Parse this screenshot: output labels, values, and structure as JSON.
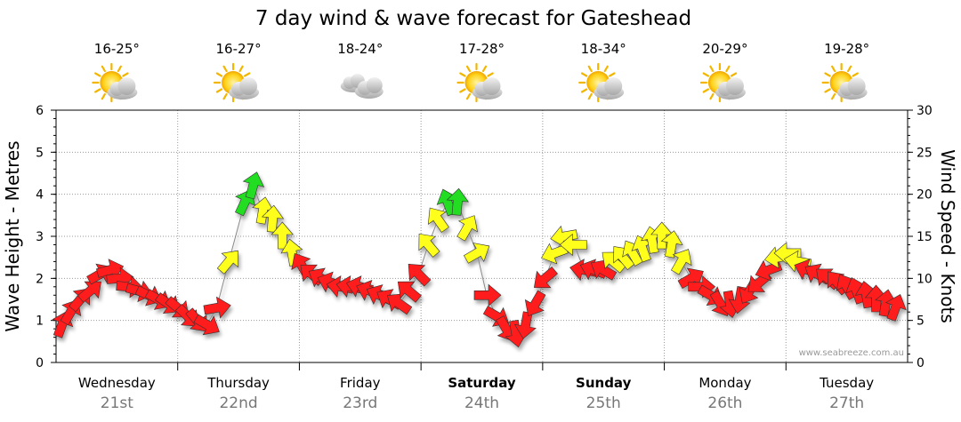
{
  "title": "7 day wind & wave forecast for Gateshead",
  "watermark": "www.seabreeze.com.au",
  "colors": {
    "low": "#ff1a1a",
    "mid": "#ffff1a",
    "high": "#22dd22"
  },
  "days": [
    {
      "name": "Wednesday",
      "date": "21st",
      "bold": false,
      "temp": "16-25°",
      "icon": "sun-cloud-icon"
    },
    {
      "name": "Thursday",
      "date": "22nd",
      "bold": false,
      "temp": "16-27°",
      "icon": "sun-cloud-icon"
    },
    {
      "name": "Friday",
      "date": "23rd",
      "bold": false,
      "temp": "18-24°",
      "icon": "cloud-icon"
    },
    {
      "name": "Saturday",
      "date": "24th",
      "bold": true,
      "temp": "17-28°",
      "icon": "sun-cloud-icon"
    },
    {
      "name": "Sunday",
      "date": "25th",
      "bold": true,
      "temp": "18-34°",
      "icon": "sun-cloud-icon"
    },
    {
      "name": "Monday",
      "date": "26th",
      "bold": false,
      "temp": "20-29°",
      "icon": "sun-cloud-icon"
    },
    {
      "name": "Tuesday",
      "date": "27th",
      "bold": false,
      "temp": "19-28°",
      "icon": "sun-cloud-icon"
    }
  ],
  "chart_data": {
    "type": "line",
    "title": "7 day wind & wave forecast for Gateshead",
    "y_left": {
      "label": "Wave Height - Metres",
      "range": [
        0,
        6
      ],
      "ticks": [
        0,
        1,
        2,
        3,
        4,
        5,
        6
      ]
    },
    "y_right": {
      "label": "Wind Speed - Knots",
      "range": [
        0,
        30
      ],
      "ticks": [
        0,
        5,
        10,
        15,
        20,
        25,
        30
      ]
    },
    "x_unit": "days from start of Wednesday 21st",
    "grid": true,
    "series": [
      {
        "x": [
          0.05,
          0.12,
          0.2,
          0.28,
          0.36,
          0.44,
          0.52,
          0.6,
          0.68,
          0.76,
          0.84,
          0.92,
          1.0,
          1.08,
          1.16,
          1.24,
          1.32,
          1.42,
          1.55,
          1.62,
          1.7,
          1.78,
          1.86,
          1.94,
          2.02,
          2.1,
          2.18,
          2.26,
          2.34,
          2.42,
          2.5,
          2.58,
          2.66,
          2.74,
          2.82,
          2.9,
          2.98,
          3.06,
          3.14,
          3.22,
          3.3,
          3.38,
          3.46,
          3.54,
          3.62,
          3.7,
          3.78,
          3.86,
          3.94,
          4.02,
          4.1,
          4.18,
          4.26,
          4.34,
          4.42,
          4.5,
          4.58,
          4.66,
          4.74,
          4.82,
          4.9,
          4.98,
          5.06,
          5.14,
          5.22,
          5.3,
          5.38,
          5.46,
          5.54,
          5.62,
          5.7,
          5.78,
          5.86,
          5.94,
          6.02,
          6.1,
          6.18,
          6.26,
          6.34,
          6.42,
          6.5,
          6.58,
          6.66,
          6.74,
          6.82,
          6.9
        ],
        "knots": [
          4.5,
          6,
          7.5,
          8.5,
          10.5,
          11,
          10,
          9,
          8.5,
          8,
          7.5,
          7,
          6.5,
          5.5,
          5,
          4.5,
          6.5,
          12,
          19,
          21,
          18,
          17,
          15,
          13,
          11.5,
          10.5,
          10,
          9.5,
          9,
          9,
          9,
          8.5,
          8,
          7.5,
          7,
          8.5,
          10.5,
          14,
          17,
          19,
          19,
          16,
          13,
          8,
          5.5,
          4,
          3.5,
          4.5,
          7,
          10,
          13,
          15,
          14,
          11,
          11,
          11,
          12,
          12.5,
          13,
          13.5,
          14.5,
          15,
          14,
          12,
          10,
          9,
          8,
          7,
          7,
          7.5,
          8.5,
          9.5,
          11,
          12.5,
          13,
          12,
          11,
          10.5,
          10,
          9.5,
          9,
          8.5,
          8,
          7.5,
          7,
          6.5
        ],
        "directions_deg": [
          20,
          30,
          40,
          50,
          60,
          75,
          85,
          95,
          105,
          115,
          120,
          125,
          130,
          135,
          140,
          120,
          80,
          40,
          25,
          15,
          10,
          5,
          0,
          350,
          330,
          310,
          300,
          290,
          280,
          280,
          285,
          290,
          295,
          300,
          305,
          310,
          315,
          320,
          325,
          340,
          5,
          30,
          60,
          90,
          120,
          150,
          170,
          190,
          210,
          230,
          250,
          260,
          270,
          280,
          290,
          300,
          310,
          320,
          330,
          340,
          350,
          0,
          10,
          30,
          60,
          90,
          120,
          150,
          170,
          190,
          210,
          230,
          250,
          260,
          270,
          280,
          290,
          300,
          310,
          320,
          330,
          340,
          350,
          0,
          10,
          20
        ]
      }
    ]
  }
}
